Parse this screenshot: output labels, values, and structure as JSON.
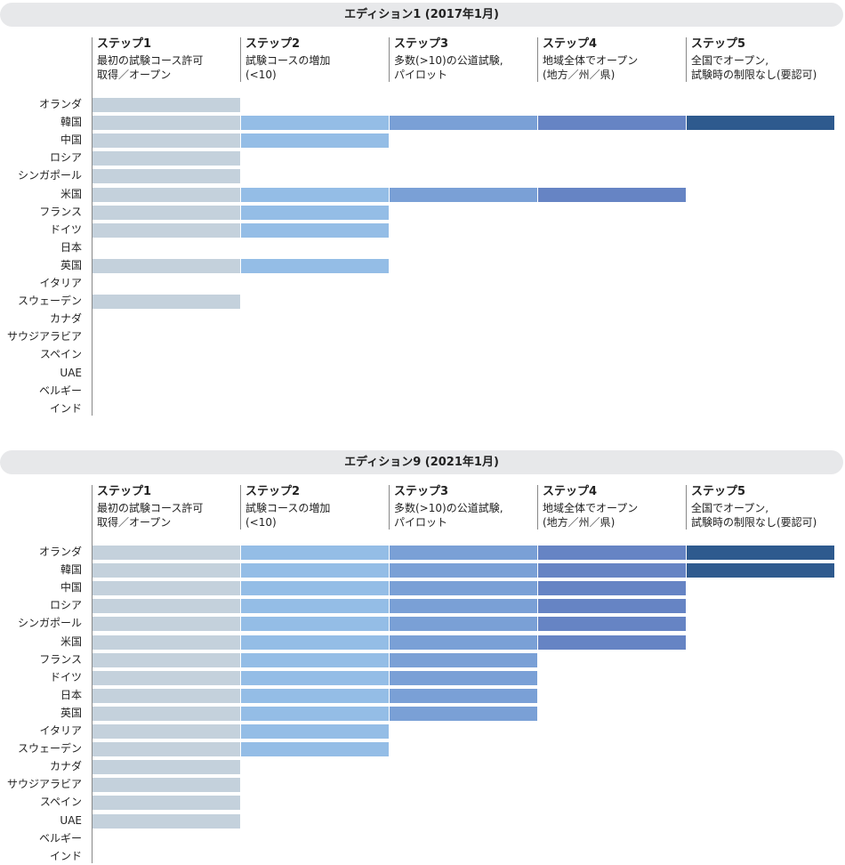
{
  "colors": [
    "#c4d1dc",
    "#94bde6",
    "#7aa0d6",
    "#6684c4",
    "#2e5a8e"
  ],
  "steps": [
    {
      "name": "ステップ1",
      "desc": "最初の試験コース許可\n取得／オープン"
    },
    {
      "name": "ステップ2",
      "desc": "試験コースの増加\n(<10)"
    },
    {
      "name": "ステップ3",
      "desc": "多数(>10)の公道試験,\nパイロット"
    },
    {
      "name": "ステップ4",
      "desc": "地域全体でオープン\n(地方／州／県)"
    },
    {
      "name": "ステップ5",
      "desc": "全国でオープン,\n試験時の制限なし(要認可)"
    }
  ],
  "chart_data": [
    {
      "type": "bar",
      "title": "エディション1 (2017年1月)",
      "categories": [
        "オランダ",
        "韓国",
        "中国",
        "ロシア",
        "シンガポール",
        "米国",
        "フランス",
        "ドイツ",
        "日本",
        "英国",
        "イタリア",
        "スウェーデン",
        "カナダ",
        "サウジアラビア",
        "スペイン",
        "UAE",
        "ベルギー",
        "インド"
      ],
      "values": [
        1,
        5,
        2,
        1,
        1,
        4,
        2,
        2,
        0,
        2,
        0,
        1,
        0,
        0,
        0,
        0,
        0,
        0
      ],
      "xlim": [
        0,
        5
      ]
    },
    {
      "type": "bar",
      "title": "エディション9 (2021年1月)",
      "categories": [
        "オランダ",
        "韓国",
        "中国",
        "ロシア",
        "シンガポール",
        "米国",
        "フランス",
        "ドイツ",
        "日本",
        "英国",
        "イタリア",
        "スウェーデン",
        "カナダ",
        "サウジアラビア",
        "スペイン",
        "UAE",
        "ベルギー",
        "インド"
      ],
      "values": [
        5,
        5,
        4,
        4,
        4,
        4,
        3,
        3,
        3,
        3,
        2,
        2,
        1,
        1,
        1,
        1,
        0,
        0
      ],
      "xlim": [
        0,
        5
      ]
    }
  ]
}
